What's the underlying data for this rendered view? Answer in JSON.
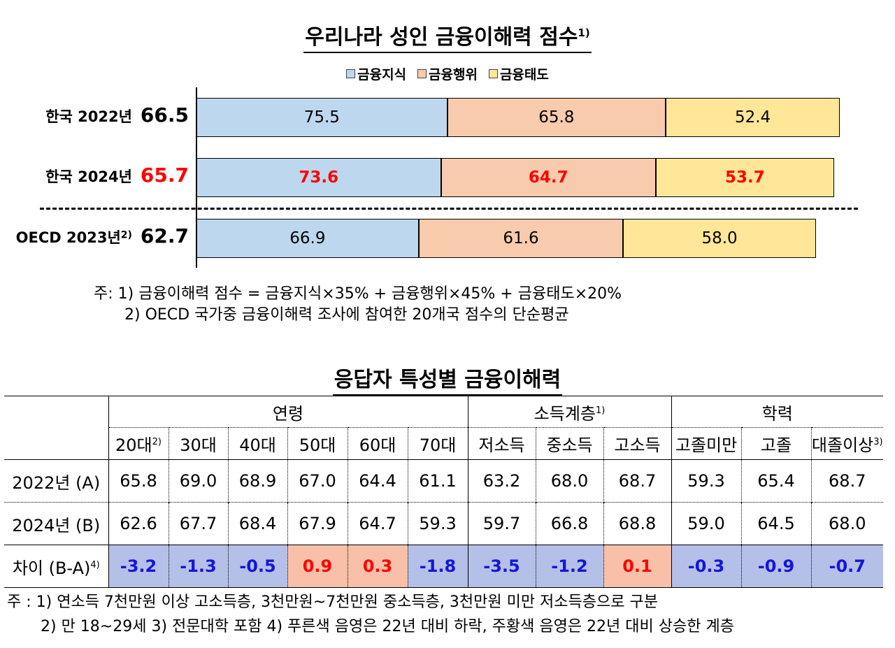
{
  "title1": {
    "text": "우리나라 성인 금융이해력 점수",
    "sup": "1)"
  },
  "legend": [
    {
      "label": "금융지식",
      "color": "#bdd7ee"
    },
    {
      "label": "금융행위",
      "color": "#f8cbad"
    },
    {
      "label": "금융태도",
      "color": "#ffe699"
    }
  ],
  "chart_data": {
    "type": "bar",
    "orientation": "horizontal-stacked",
    "title": "우리나라 성인 금융이해력 점수",
    "series_names": [
      "금융지식",
      "금융행위",
      "금융태도"
    ],
    "rows": [
      {
        "label": "한국 2022년",
        "sup": "",
        "total": "66.5",
        "values": [
          75.5,
          65.8,
          52.4
        ],
        "highlight": false
      },
      {
        "label": "한국 2024년",
        "sup": "",
        "total": "65.7",
        "values": [
          73.6,
          64.7,
          53.7
        ],
        "highlight": true
      },
      {
        "label": "OECD 2023년",
        "sup": "2)",
        "total": "62.7",
        "values": [
          66.9,
          61.6,
          58.0
        ],
        "highlight": false
      }
    ],
    "highlight_color": "#ff0000"
  },
  "notes1": {
    "line1": "주:  1)  금융이해력  점수  =  금융지식×35%  +  금융행위×45%  +  금융태도×20%",
    "line2": "2)  OECD  국가중  금융이해력  조사에  참여한  20개국  점수의  단순평균"
  },
  "title2": {
    "text": "응답자 특성별 금융이해력"
  },
  "table": {
    "groups": [
      {
        "label": "연령",
        "sup": "",
        "span": 6
      },
      {
        "label": "소득계층",
        "sup": "1)",
        "span": 3
      },
      {
        "label": "학력",
        "sup": "",
        "span": 3
      }
    ],
    "columns": [
      {
        "label": "20대",
        "sup": "2)"
      },
      {
        "label": "30대",
        "sup": ""
      },
      {
        "label": "40대",
        "sup": ""
      },
      {
        "label": "50대",
        "sup": ""
      },
      {
        "label": "60대",
        "sup": ""
      },
      {
        "label": "70대",
        "sup": ""
      },
      {
        "label": "저소득",
        "sup": ""
      },
      {
        "label": "중소득",
        "sup": ""
      },
      {
        "label": "고소득",
        "sup": ""
      },
      {
        "label": "고졸미만",
        "sup": ""
      },
      {
        "label": "고졸",
        "sup": ""
      },
      {
        "label": "대졸이상",
        "sup": "3)"
      }
    ],
    "rows": [
      {
        "label": "2022년 (A)",
        "sup": "",
        "values": [
          "65.8",
          "69.0",
          "68.9",
          "67.0",
          "64.4",
          "61.1",
          "63.2",
          "68.0",
          "68.7",
          "59.3",
          "65.4",
          "68.7"
        ]
      },
      {
        "label": "2024년 (B)",
        "sup": "",
        "values": [
          "62.6",
          "67.7",
          "68.4",
          "67.9",
          "64.7",
          "59.3",
          "59.7",
          "66.8",
          "68.8",
          "59.0",
          "64.5",
          "68.0"
        ]
      }
    ],
    "diff_row": {
      "label": "차이 (B-A)",
      "sup": "4)",
      "values": [
        "-3.2",
        "-1.3",
        "-0.5",
        "0.9",
        "0.3",
        "-1.8",
        "-3.5",
        "-1.2",
        "0.1",
        "-0.3",
        "-0.9",
        "-0.7"
      ]
    },
    "colors": {
      "down_bg": "#b4c0e8",
      "down_text": "#1515d8",
      "up_bg": "#f8c0a8",
      "up_text": "#ff0000"
    }
  },
  "notes2": {
    "line1": "주 :  1)  연소득 7천만원 이상 고소득층, 3천만원~7천만원 중소득층, 3천만원 미만 저소득층으로 구분",
    "line2": "2)  만 18~29세      3)  전문대학 포함     4)  푸른색 음영은 22년 대비 하락, 주황색 음영은 22년 대비 상승한 계층"
  }
}
